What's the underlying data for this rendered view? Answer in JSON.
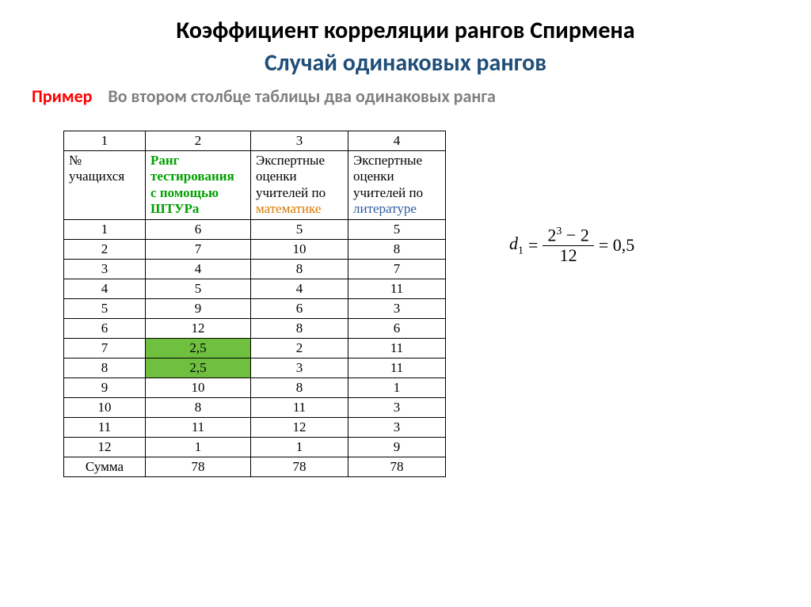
{
  "title_main": "Коэффициент корреляции рангов Спирмена",
  "title_sub": "Случай одинаковых рангов",
  "example_label": "Пример",
  "example_text": "Во втором столбце таблицы два одинаковых ранга",
  "table": {
    "col_numbers": [
      "1",
      "2",
      "3",
      "4"
    ],
    "headers": {
      "c1": "№ учащихся",
      "c2_l1": "Ранг",
      "c2_l2": "тестирования",
      "c2_l3": "с помощью",
      "c2_l4": "ШТУРа",
      "c3_l1": "Экспертные",
      "c3_l2": "оценки",
      "c3_l3": "учителей по",
      "c3_l4": "математике",
      "c4_l1": "Экспертные",
      "c4_l2": "оценки",
      "c4_l3": "учителей по",
      "c4_l4": "литературе"
    },
    "rows": [
      {
        "n": "1",
        "r": "6",
        "m": "5",
        "l": "5",
        "hl": false
      },
      {
        "n": "2",
        "r": "7",
        "m": "10",
        "l": "8",
        "hl": false
      },
      {
        "n": "3",
        "r": "4",
        "m": "8",
        "l": "7",
        "hl": false
      },
      {
        "n": "4",
        "r": "5",
        "m": "4",
        "l": "11",
        "hl": false
      },
      {
        "n": "5",
        "r": "9",
        "m": "6",
        "l": "3",
        "hl": false
      },
      {
        "n": "6",
        "r": "12",
        "m": "8",
        "l": "6",
        "hl": false
      },
      {
        "n": "7",
        "r": "2,5",
        "m": "2",
        "l": "11",
        "hl": true
      },
      {
        "n": "8",
        "r": "2,5",
        "m": "3",
        "l": "11",
        "hl": true
      },
      {
        "n": "9",
        "r": "10",
        "m": "8",
        "l": "1",
        "hl": false
      },
      {
        "n": "10",
        "r": "8",
        "m": "11",
        "l": "3",
        "hl": false
      },
      {
        "n": "11",
        "r": "11",
        "m": "12",
        "l": "3",
        "hl": false
      },
      {
        "n": "12",
        "r": "1",
        "m": "1",
        "l": "9",
        "hl": false
      }
    ],
    "sum_label": "Сумма",
    "sums": [
      "78",
      "78",
      "78"
    ]
  },
  "formula": {
    "lhs_var": "d",
    "lhs_sub": "1",
    "eq1": "=",
    "num_base": "2",
    "num_exp": "3",
    "num_minus": " − 2",
    "den": "12",
    "eq2": "= 0,5"
  },
  "colors": {
    "title_sub": "#1f4e79",
    "example_label": "#ff0000",
    "example_text": "#808080",
    "hdr_green": "#00a000",
    "hdr_orange": "#d87a00",
    "hdr_blue": "#2e5aa0",
    "highlight_bg": "#70c040",
    "border": "#000000",
    "background": "#ffffff"
  }
}
